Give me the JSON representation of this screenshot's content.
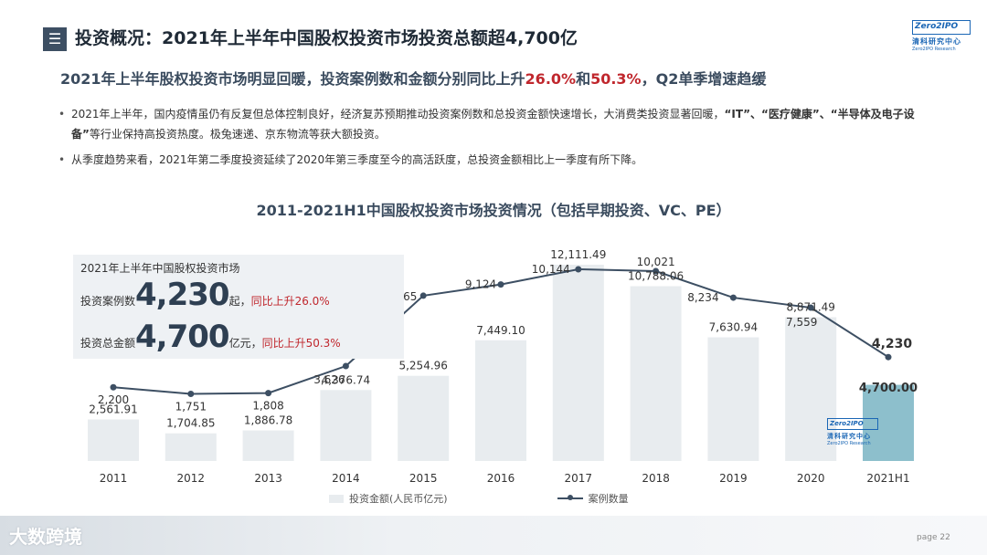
{
  "header": {
    "menu_icon": "menu-icon",
    "title": "投资概况：2021年上半年中国股权投资市场投资总额超4,700亿",
    "logo_text": "Zero2IPO",
    "logo_cn": "清科研究中心",
    "logo_en": "Zero2IPO Research"
  },
  "subtitle": {
    "part1": "2021年上半年股权投资市场明显回暖，投资案例数和金额分别同比上升",
    "pct1": "26.0%",
    "and": "和",
    "pct2": "50.3%",
    "part2": "，Q2单季增速趋缓"
  },
  "bullets": {
    "b1_a": "2021年上半年，国内疫情虽仍有反复但总体控制良好，经济复苏预期推动投资案例数和总投资金额快速增长，大消费类投资显著回暖，",
    "b1_bold": "“IT”、“医疗健康”、“半导体及电子设备”",
    "b1_b": "等行业保持高投资热度。极兔速递、京东物流等获大额投资。",
    "b2": "从季度趋势来看，2021年第二季度投资延续了2020年第三季度至今的高活跃度，总投资金额相比上一季度有所下降。"
  },
  "info_box": {
    "title": "2021年上半年中国股权投资市场",
    "cases_label": "投资案例数",
    "cases_value": "4,230",
    "cases_unit": "起，",
    "cases_yoy": "同比上升26.0%",
    "amount_label": "投资总金额",
    "amount_value": "4,700",
    "amount_unit": "亿元，",
    "amount_yoy": "同比上升50.3%"
  },
  "chart_data": {
    "type": "bar",
    "title": "2011-2021H1中国股权投资市场投资情况（包括早期投资、VC、PE）",
    "categories": [
      "2011",
      "2012",
      "2013",
      "2014",
      "2015",
      "2016",
      "2017",
      "2018",
      "2019",
      "2020",
      "2021H1"
    ],
    "series": [
      {
        "name": "投资金额(人民币亿元)",
        "type": "bar",
        "values": [
          2561.91,
          1704.85,
          1886.78,
          4376.74,
          5254.96,
          7449.1,
          12111.49,
          10788.06,
          7630.94,
          8871.49,
          4700.0
        ],
        "labels": [
          "2,561.91",
          "1,704.85",
          "1,886.78",
          "4,376.74",
          "5,254.96",
          "7,449.10",
          "12,111.49",
          "10,788.06",
          "7,630.94",
          "8,871.49",
          "4,700.00"
        ]
      },
      {
        "name": "案例数量",
        "type": "line",
        "values": [
          2200,
          1751,
          1808,
          3626,
          8365,
          9124,
          10144,
          10021,
          8234,
          7559,
          4230
        ],
        "labels": [
          "2,200",
          "1,751",
          "1,808",
          "3,626",
          "8,365",
          "9,124",
          "10,144",
          "10,021",
          "8,234",
          "7,559",
          "4,230"
        ]
      }
    ],
    "colors": {
      "bar": "#e8ecef",
      "bar_highlight": "#8dbfcc",
      "line": "#3d4f63"
    }
  },
  "legend": {
    "bar_label": "投资金额(人民币亿元)",
    "line_label": "案例数量"
  },
  "footer": {
    "watermark": "大数跨境",
    "page": "page  22"
  }
}
